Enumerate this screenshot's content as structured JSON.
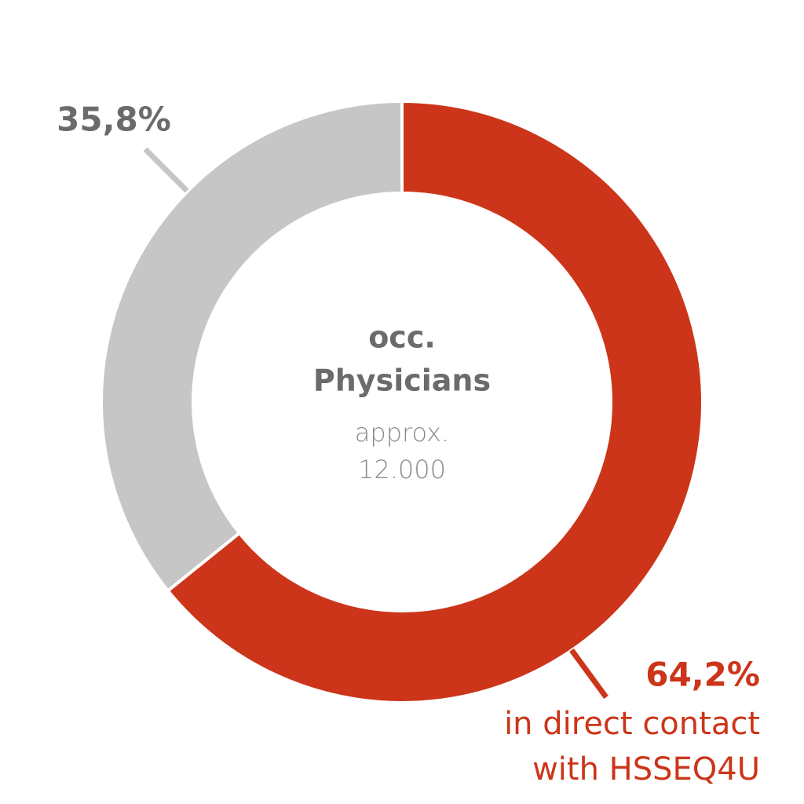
{
  "chart_data": {
    "type": "pie",
    "values": [
      64.2,
      35.8
    ],
    "value_labels": [
      "64,2%",
      "35,8%"
    ],
    "colors": [
      "#cc3519",
      "#c6c6c6"
    ],
    "donut": true,
    "center_text": [
      "occ.",
      "Physicians",
      "approx.",
      "12.000"
    ],
    "annotations": [
      "in direct contact",
      "with HSSEQ4U"
    ]
  }
}
